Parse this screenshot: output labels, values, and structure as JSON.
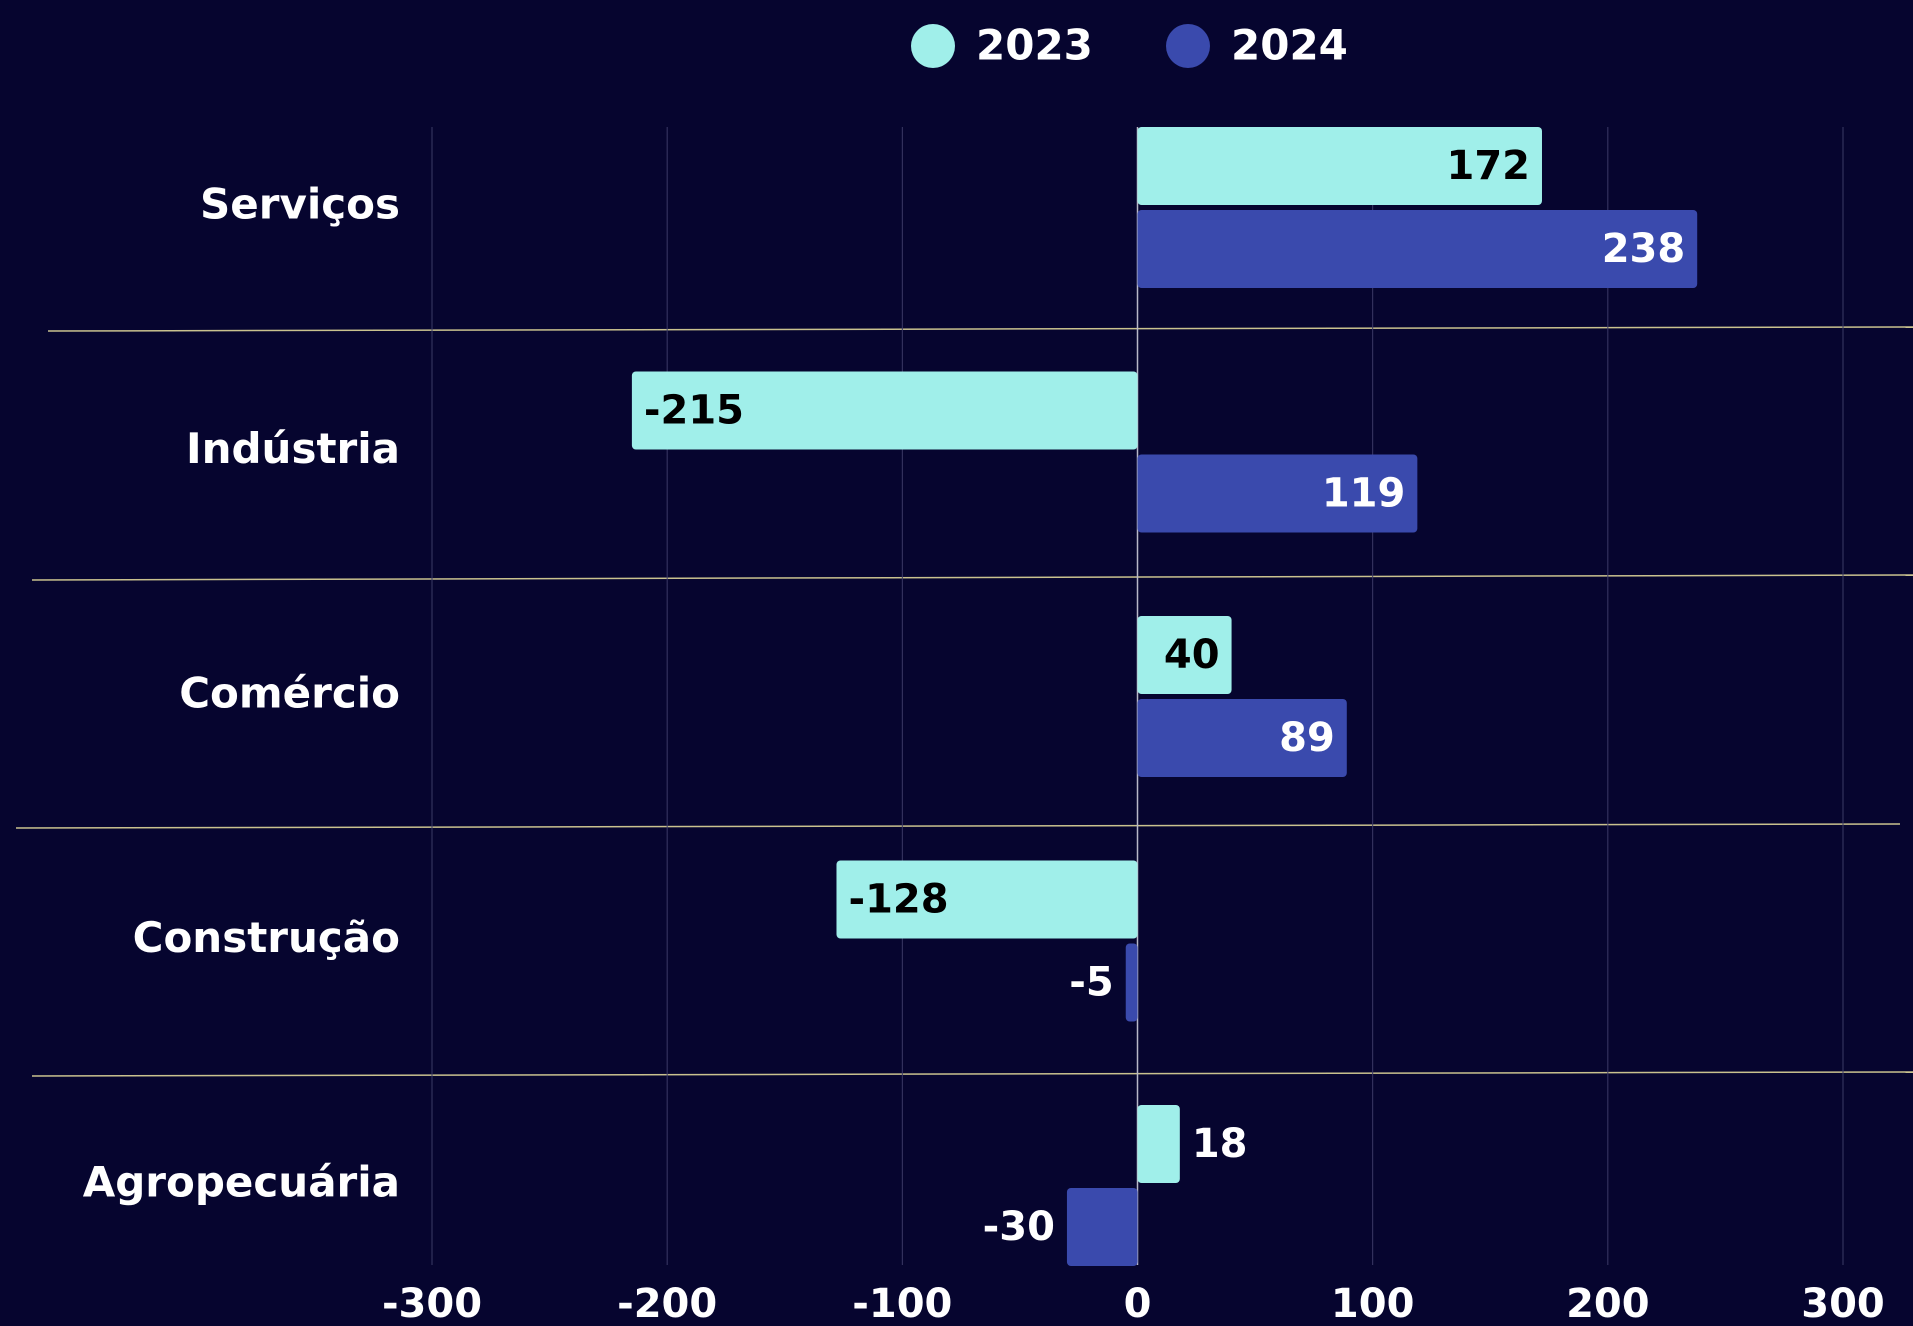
{
  "chart_data": {
    "type": "hbar",
    "categories": [
      "Serviços",
      "Indústria",
      "Comércio",
      "Construção",
      "Agropecuária"
    ],
    "series": [
      {
        "name": "2023",
        "color": "#a0efea",
        "values": [
          172,
          -215,
          40,
          -128,
          18
        ]
      },
      {
        "name": "2024",
        "color": "#3a4aad",
        "values": [
          238,
          119,
          89,
          -5,
          -30
        ]
      }
    ],
    "xlim": [
      -300,
      300
    ],
    "xticks": [
      -300,
      -200,
      -100,
      0,
      100,
      200,
      300
    ],
    "grid": true
  }
}
